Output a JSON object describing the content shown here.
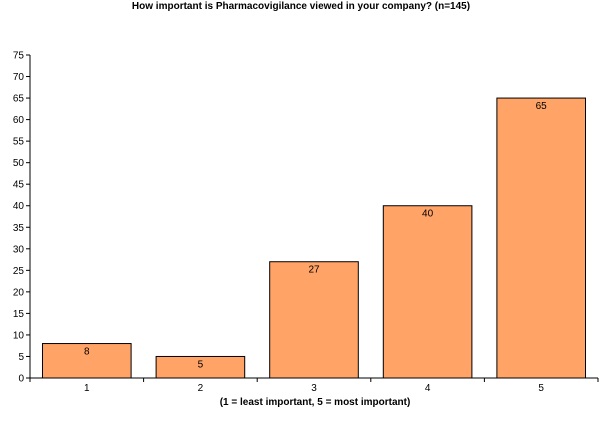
{
  "chart_data": {
    "type": "bar",
    "title": "How important is Pharmacovigilance viewed in your company?  (n=145)",
    "xlabel": "(1 = least important, 5 = most important)",
    "ylabel": "",
    "categories": [
      "1",
      "2",
      "3",
      "4",
      "5"
    ],
    "values": [
      8,
      5,
      27,
      40,
      65
    ],
    "ylim": [
      0,
      75
    ],
    "ytick_step": 5,
    "grid": false,
    "legend": "none",
    "bar_color": "#FFA366",
    "bar_edge_color": "#000000",
    "show_data_labels": true
  }
}
